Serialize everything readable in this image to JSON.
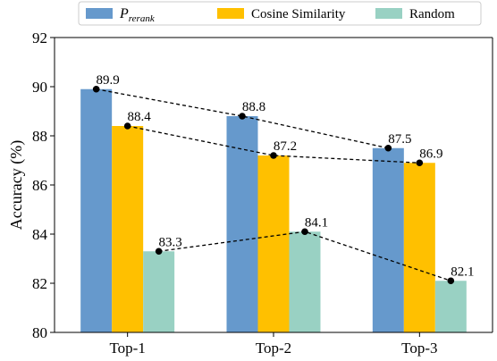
{
  "chart_data": {
    "type": "bar",
    "title": "",
    "xlabel": "",
    "ylabel": "Accuracy (%)",
    "ylim": [
      80,
      92
    ],
    "yticks": [
      80,
      82,
      84,
      86,
      88,
      90,
      92
    ],
    "categories": [
      "Top-1",
      "Top-2",
      "Top-3"
    ],
    "series": [
      {
        "name": "P_rerank",
        "legend_main": "P",
        "legend_sub": "rerank",
        "color": "#6699CC",
        "values": [
          89.9,
          88.8,
          87.5
        ]
      },
      {
        "name": "Cosine Similarity",
        "color": "#FFC000",
        "values": [
          88.4,
          87.2,
          86.9
        ]
      },
      {
        "name": "Random",
        "color": "#99D1C3",
        "values": [
          83.3,
          84.1,
          82.1
        ]
      }
    ],
    "trend_lines": true,
    "grid": false,
    "legend_position": "top-center"
  }
}
